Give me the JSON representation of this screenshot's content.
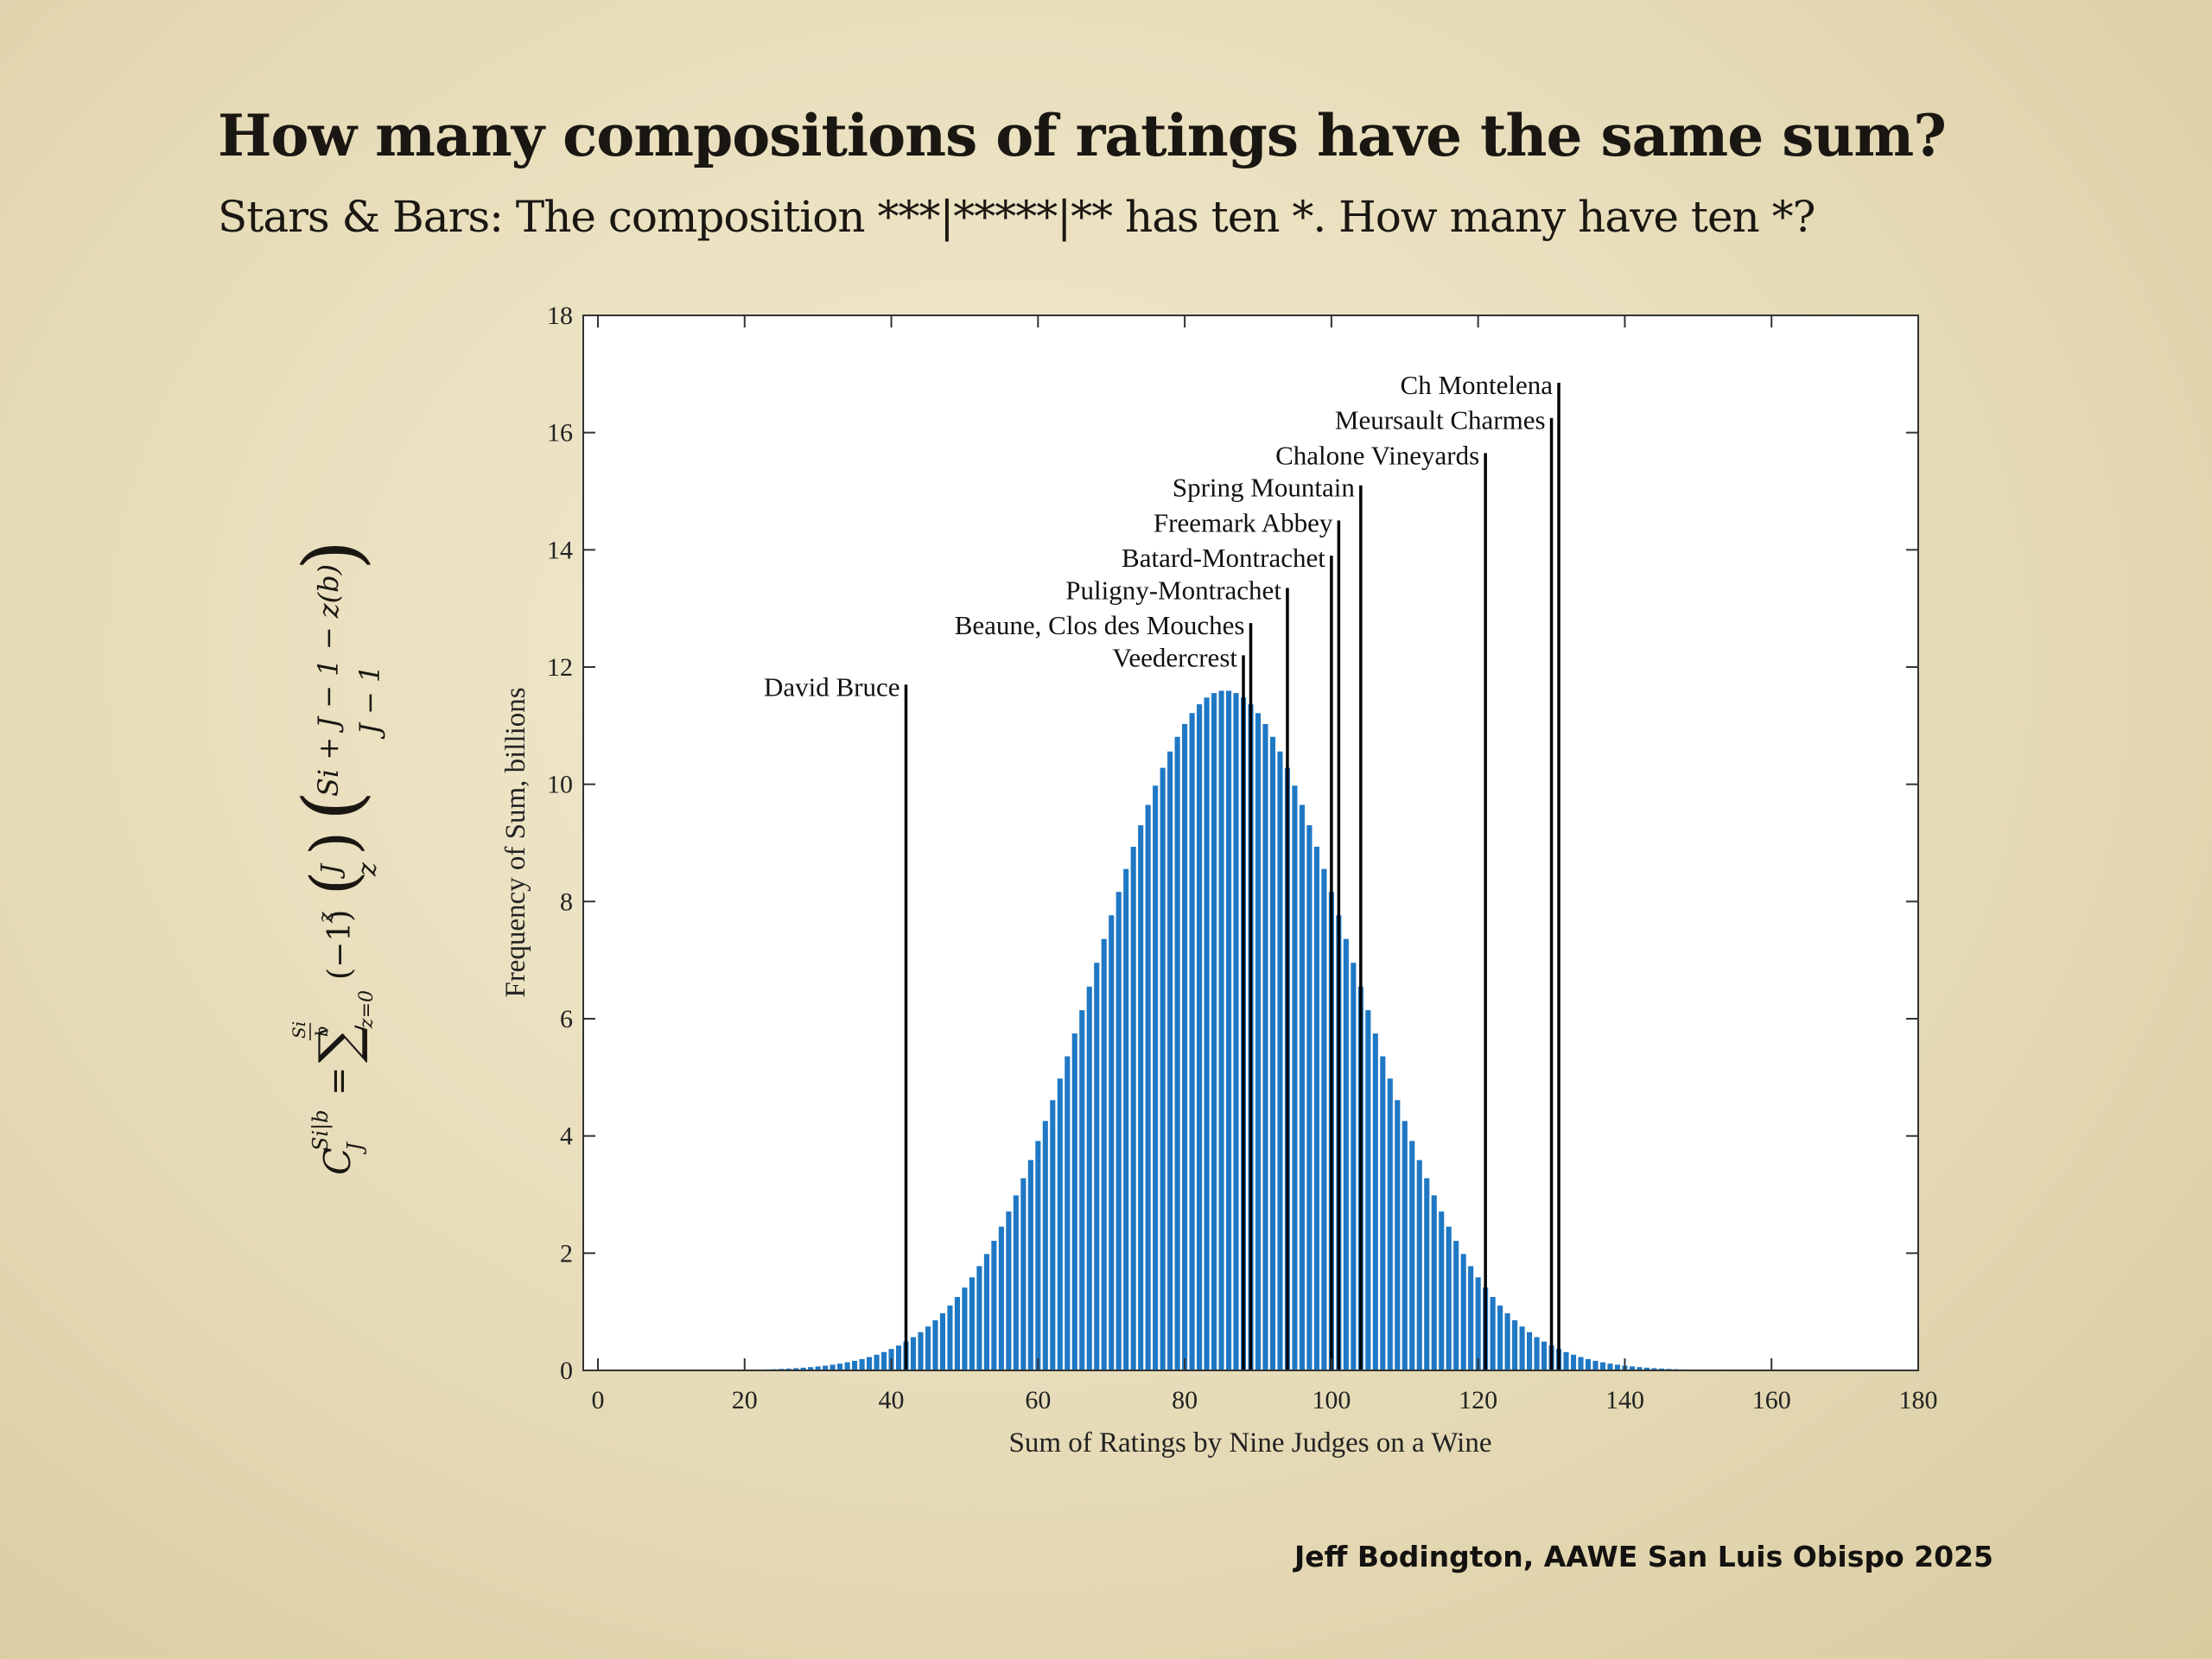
{
  "slide": {
    "title": "How many compositions of ratings have the same sum?",
    "subtitle": "Stars & Bars:  The composition ***|*****|** has  ten *.  How many have ten *?",
    "footer": "Jeff Bodington, AAWE San Luis Obispo 2025"
  },
  "formula": {
    "lhs": "C",
    "lhs_sup": "Si|b",
    "lhs_sub": "J",
    "sum_upper_num": "Si",
    "sum_upper_den": "b",
    "sum_lower": "z=0",
    "factor": "(−1)",
    "factor_exp": "z",
    "binom1_top": "J",
    "binom1_bottom": "z",
    "binom2_top": "Si + J − 1 − z(b)",
    "binom2_bottom": "J − 1"
  },
  "chart_data": {
    "type": "bar",
    "xlabel": "Sum of Ratings by Nine Judges on a Wine",
    "ylabel": "Frequency of Sum, billions",
    "xlim": [
      -2,
      180
    ],
    "ylim": [
      0,
      18
    ],
    "xticks": [
      0,
      20,
      40,
      60,
      80,
      100,
      120,
      140,
      160,
      180
    ],
    "yticks": [
      0,
      2,
      4,
      6,
      8,
      10,
      12,
      14,
      16,
      18
    ],
    "bar_color": "#1f78c4",
    "grid": false,
    "distribution": {
      "x_min": 0,
      "x_max": 180,
      "peak_x": 85.5,
      "peak_y": 11.6,
      "std_dev": 17.3
    },
    "annotations": [
      {
        "label": "David Bruce",
        "x": 42,
        "y": 11.7
      },
      {
        "label": "Veedercrest",
        "x": 88,
        "y": 12.2
      },
      {
        "label": "Beaune, Clos des Mouches",
        "x": 89,
        "y": 12.75
      },
      {
        "label": "Puligny-Montrachet",
        "x": 94,
        "y": 13.35
      },
      {
        "label": "Batard-Montrachet",
        "x": 100,
        "y": 13.9
      },
      {
        "label": "Freemark Abbey",
        "x": 101,
        "y": 14.5
      },
      {
        "label": "Spring Mountain",
        "x": 104,
        "y": 15.1
      },
      {
        "label": "Chalone Vineyards",
        "x": 121,
        "y": 15.65
      },
      {
        "label": "Meursault Charmes",
        "x": 130,
        "y": 16.25
      },
      {
        "label": "Ch Montelena",
        "x": 131,
        "y": 16.85
      }
    ]
  }
}
